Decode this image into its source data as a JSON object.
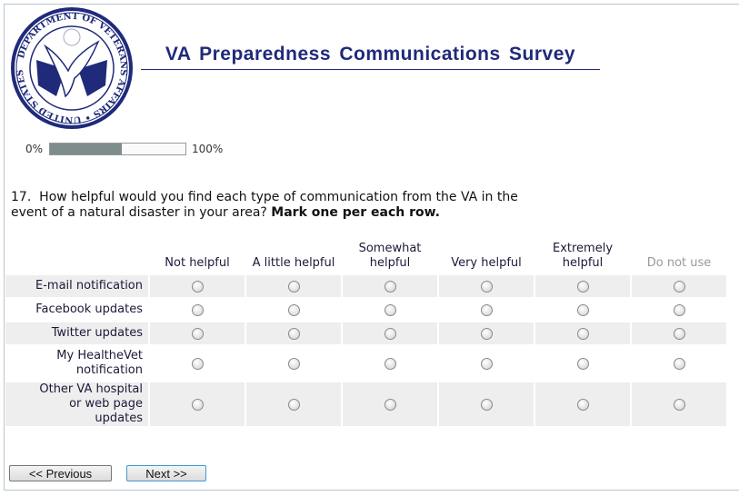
{
  "logo": {
    "text": "DEPARTMENT OF VETERANS AFFAIRS · UNITED STATES OF AMERICA"
  },
  "title": "VA Preparedness Communications Survey",
  "progress": {
    "start_label": "0%",
    "end_label": "100%",
    "percent": 53
  },
  "question": {
    "number": "17.",
    "text": "How helpful would you find each type of communication from the VA in the event of a natural disaster in your area?",
    "instruction": "Mark one per each row."
  },
  "columns": [
    "Not helpful",
    "A little helpful",
    "Somewhat helpful",
    "Very helpful",
    "Extremely helpful",
    "Do not use"
  ],
  "rows": [
    "E-mail notification",
    "Facebook updates",
    "Twitter updates",
    "My HealtheVet notification",
    "Other VA hospital or web page updates"
  ],
  "nav": {
    "previous": "<< Previous",
    "next": "Next >>"
  }
}
